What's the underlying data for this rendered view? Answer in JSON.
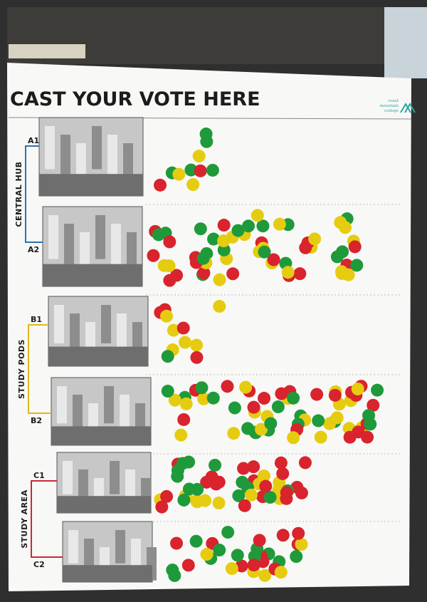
{
  "header": {
    "title": "CAST YOUR VOTE HERE",
    "logo_lines": [
      "coast",
      "mountain",
      "college"
    ]
  },
  "groups": [
    {
      "label": "CENTRAL HUB",
      "options": [
        "A1",
        "A2"
      ]
    },
    {
      "label": "STUDY PODS",
      "options": [
        "B1",
        "B2"
      ]
    },
    {
      "label": "STUDY AREA",
      "options": [
        "C1",
        "C2"
      ]
    }
  ]
}
